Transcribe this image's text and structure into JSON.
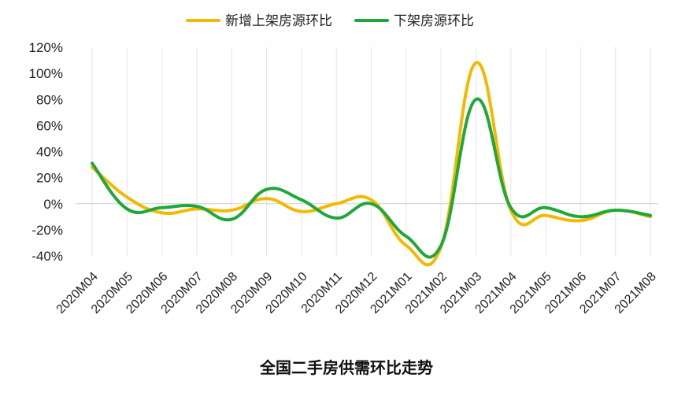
{
  "chart_data": {
    "type": "line",
    "title": "全国二手房供需环比走势",
    "xlabel": "",
    "ylabel": "",
    "categories": [
      "2020M04",
      "2020M05",
      "2020M06",
      "2020M07",
      "2020M08",
      "2020M09",
      "2020M10",
      "2020M11",
      "2020M12",
      "2021M01",
      "2021M02",
      "2021M03",
      "2021M04",
      "2021M05",
      "2021M06",
      "2021M07",
      "2021M08"
    ],
    "yticks": [
      "120%",
      "100%",
      "80%",
      "60%",
      "40%",
      "20%",
      "0%",
      "-20%",
      "-40%"
    ],
    "ylim": [
      -40,
      120
    ],
    "grid": "vertical",
    "legend_position": "top-center",
    "series": [
      {
        "name": "新增上架房源环比",
        "color": "#f5b800",
        "values": [
          28,
          5,
          -7,
          -4,
          -5,
          4,
          -6,
          0,
          3,
          -32,
          -33,
          108,
          -5,
          -9,
          -13,
          -5,
          -10
        ]
      },
      {
        "name": "下架房源环比",
        "color": "#1fa83a",
        "values": [
          31,
          -4,
          -3,
          -2,
          -12,
          11,
          3,
          -11,
          0,
          -25,
          -32,
          80,
          -3,
          -3,
          -10,
          -5,
          -9
        ]
      }
    ]
  }
}
